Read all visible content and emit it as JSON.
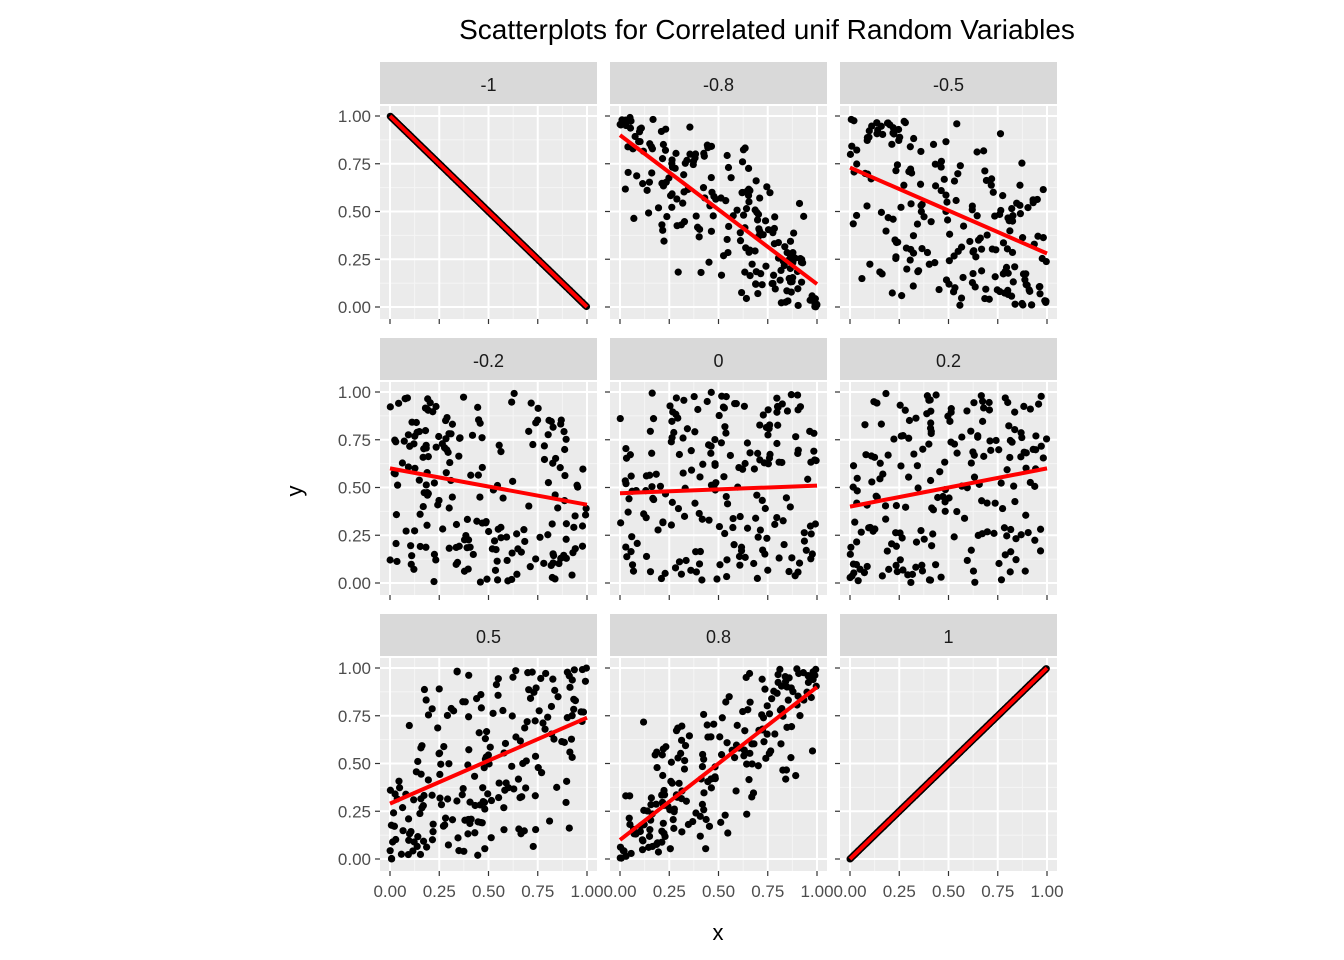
{
  "chart_data": {
    "type": "scatter",
    "title": "Scatterplots for Correlated unif Random Variables",
    "xlabel": "x",
    "ylabel": "y",
    "xlim": [
      0,
      1
    ],
    "ylim": [
      0,
      1
    ],
    "x_ticks": [
      "0.00",
      "0.25",
      "0.50",
      "0.75",
      "1.00"
    ],
    "y_ticks": [
      "0.00",
      "0.25",
      "0.50",
      "0.75",
      "1.00"
    ],
    "grid": true,
    "point_color": "#000000",
    "line_color": "#ff0000",
    "panel_background": "#ebebeb",
    "strip_background": "#d9d9d9",
    "panels": [
      {
        "label": "-1",
        "rho": -1.0,
        "fit": [
          1.0,
          0.0
        ],
        "points_shown": 200
      },
      {
        "label": "-0.8",
        "rho": -0.8,
        "fit": [
          0.9,
          0.12
        ],
        "points_shown": 200
      },
      {
        "label": "-0.5",
        "rho": -0.5,
        "fit": [
          0.73,
          0.28
        ],
        "points_shown": 200
      },
      {
        "label": "-0.2",
        "rho": -0.2,
        "fit": [
          0.6,
          0.41
        ],
        "points_shown": 200
      },
      {
        "label": "0",
        "rho": 0.0,
        "fit": [
          0.47,
          0.51
        ],
        "points_shown": 200
      },
      {
        "label": "0.2",
        "rho": 0.2,
        "fit": [
          0.4,
          0.6
        ],
        "points_shown": 200
      },
      {
        "label": "0.5",
        "rho": 0.5,
        "fit": [
          0.29,
          0.74
        ],
        "points_shown": 200
      },
      {
        "label": "0.8",
        "rho": 0.8,
        "fit": [
          0.1,
          0.9
        ],
        "points_shown": 200
      },
      {
        "label": "1",
        "rho": 1.0,
        "fit": [
          0.0,
          1.0
        ],
        "points_shown": 200
      }
    ]
  }
}
